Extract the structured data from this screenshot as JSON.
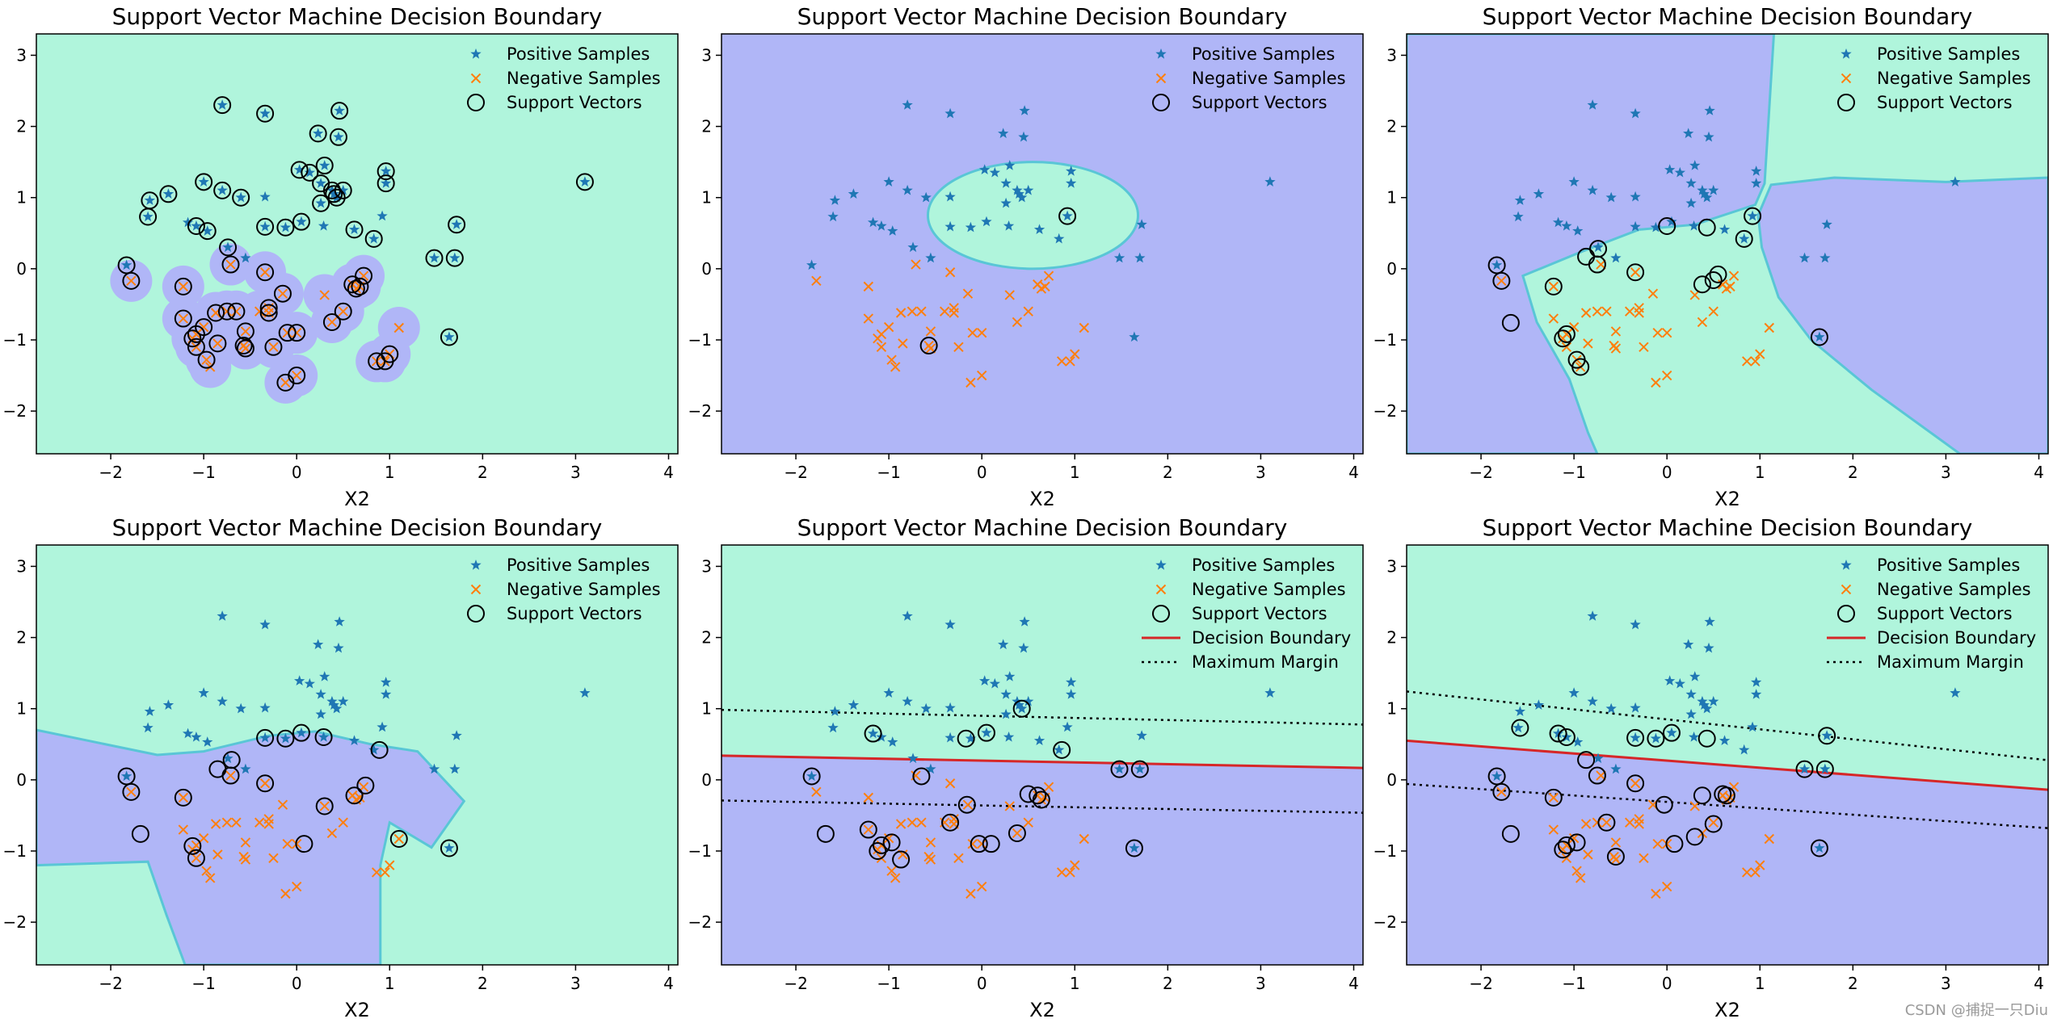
{
  "watermark": "CSDN @捕捉一只Diu",
  "colors": {
    "pos_region": "#b0f5dc",
    "neg_region": "#b0b6f7",
    "region_edge": "#59c6d6",
    "positive": "#1f77b4",
    "negative": "#ff7f0e",
    "boundary": "#d62728",
    "margin": "#000000"
  },
  "chart_data": [
    {
      "type": "scatter",
      "panel": 1,
      "title": "Support Vector Machine Decision Boundary",
      "xlabel": "X2",
      "xlim": [
        -2.8,
        4.1
      ],
      "ylim": [
        -2.6,
        3.3
      ],
      "xticks": [
        -2,
        -1,
        0,
        1,
        2,
        3,
        4
      ],
      "yticks": [
        -2,
        -1,
        0,
        1,
        2,
        3
      ],
      "legend": [
        "Positive Samples",
        "Negative Samples",
        "Support Vectors"
      ],
      "legend_position": "top-right",
      "kernel_region": "rbf-narrow",
      "boundary": null,
      "support_vectors": "nearly all samples"
    },
    {
      "type": "scatter",
      "panel": 2,
      "title": "Support Vector Machine Decision Boundary",
      "xlabel": "X2",
      "xlim": [
        -2.8,
        4.1
      ],
      "ylim": [
        -2.6,
        3.3
      ],
      "xticks": [
        -2,
        -1,
        0,
        1,
        2,
        3,
        4
      ],
      "yticks": [
        -2,
        -1,
        0,
        1,
        2,
        3
      ],
      "legend": [
        "Positive Samples",
        "Negative Samples",
        "Support Vectors"
      ],
      "legend_position": "top-right",
      "kernel_region": "ellipse",
      "boundary": null,
      "support_vectors": [
        [
          -0.57,
          -1.08
        ],
        [
          0.92,
          0.74
        ]
      ]
    },
    {
      "type": "scatter",
      "panel": 3,
      "title": "Support Vector Machine Decision Boundary",
      "xlabel": "X2",
      "xlim": [
        -2.8,
        4.1
      ],
      "ylim": [
        -2.6,
        3.3
      ],
      "xticks": [
        -2,
        -1,
        0,
        1,
        2,
        3,
        4
      ],
      "yticks": [
        -2,
        -1,
        0,
        1,
        2,
        3
      ],
      "legend": [
        "Positive Samples",
        "Negative Samples",
        "Support Vectors"
      ],
      "legend_position": "top-right",
      "kernel_region": "polygon-wedge",
      "boundary": null,
      "support_vectors": [
        [
          -1.83,
          0.05
        ],
        [
          -1.78,
          -0.17
        ],
        [
          -1.68,
          -0.76
        ],
        [
          -1.22,
          -0.25
        ],
        [
          -1.12,
          -0.98
        ],
        [
          -1.08,
          -0.92
        ],
        [
          -0.97,
          -1.28
        ],
        [
          -0.93,
          -1.38
        ],
        [
          -0.87,
          0.17
        ],
        [
          -0.74,
          0.28
        ],
        [
          -0.75,
          0.06
        ],
        [
          -0.34,
          -0.05
        ],
        [
          0.0,
          0.6
        ],
        [
          0.38,
          -0.22
        ],
        [
          0.43,
          0.58
        ],
        [
          0.5,
          -0.16
        ],
        [
          0.55,
          -0.08
        ],
        [
          0.83,
          0.42
        ],
        [
          0.92,
          0.74
        ],
        [
          1.64,
          -0.96
        ]
      ]
    },
    {
      "type": "scatter",
      "panel": 4,
      "title": "Support Vector Machine Decision Boundary",
      "xlabel": "X2",
      "xlim": [
        -2.8,
        4.1
      ],
      "ylim": [
        -2.6,
        3.3
      ],
      "xticks": [
        -2,
        -1,
        0,
        1,
        2,
        3,
        4
      ],
      "yticks": [
        -2,
        -1,
        0,
        1,
        2,
        3
      ],
      "legend": [
        "Positive Samples",
        "Negative Samples",
        "Support Vectors"
      ],
      "legend_position": "top-right",
      "kernel_region": "polygon-poly",
      "boundary": null,
      "support_vectors": [
        [
          -1.83,
          0.05
        ],
        [
          -1.78,
          -0.17
        ],
        [
          -1.68,
          -0.76
        ],
        [
          -1.22,
          -0.25
        ],
        [
          -1.12,
          -0.93
        ],
        [
          -1.08,
          -1.1
        ],
        [
          -0.85,
          0.15
        ],
        [
          -0.7,
          0.28
        ],
        [
          -0.71,
          0.06
        ],
        [
          -0.34,
          -0.05
        ],
        [
          -0.34,
          0.59
        ],
        [
          -0.12,
          0.58
        ],
        [
          0.05,
          0.66
        ],
        [
          0.29,
          0.6
        ],
        [
          0.3,
          -0.37
        ],
        [
          0.08,
          -0.9
        ],
        [
          0.62,
          -0.22
        ],
        [
          0.74,
          -0.08
        ],
        [
          0.89,
          0.42
        ],
        [
          1.64,
          -0.96
        ],
        [
          1.1,
          -0.83
        ]
      ]
    },
    {
      "type": "scatter",
      "panel": 5,
      "title": "Support Vector Machine Decision Boundary",
      "xlabel": "X2",
      "xlim": [
        -2.8,
        4.1
      ],
      "ylim": [
        -2.6,
        3.3
      ],
      "xticks": [
        -2,
        -1,
        0,
        1,
        2,
        3,
        4
      ],
      "yticks": [
        -2,
        -1,
        0,
        1,
        2,
        3
      ],
      "legend": [
        "Positive Samples",
        "Negative Samples",
        "Support Vectors",
        "Decision Boundary",
        "Maximum Margin"
      ],
      "legend_position": "top-right",
      "kernel_region": "linear",
      "boundary": {
        "slope": -0.025,
        "intercept": 0.27
      },
      "margin_upper": {
        "slope": -0.03,
        "intercept": 0.9
      },
      "margin_lower": {
        "slope": -0.025,
        "intercept": -0.36
      },
      "support_vectors": [
        [
          -1.83,
          0.05
        ],
        [
          -1.68,
          -0.76
        ],
        [
          -1.22,
          -0.7
        ],
        [
          -1.17,
          0.65
        ],
        [
          -1.12,
          -1.0
        ],
        [
          -1.08,
          -0.92
        ],
        [
          -0.97,
          -0.88
        ],
        [
          -0.87,
          -1.12
        ],
        [
          -0.65,
          0.05
        ],
        [
          -0.34,
          -0.6
        ],
        [
          -0.17,
          0.58
        ],
        [
          -0.16,
          -0.35
        ],
        [
          0.05,
          0.66
        ],
        [
          -0.03,
          -0.9
        ],
        [
          0.1,
          -0.9
        ],
        [
          0.38,
          -0.75
        ],
        [
          0.43,
          1.0
        ],
        [
          0.5,
          -0.2
        ],
        [
          0.6,
          -0.22
        ],
        [
          0.64,
          -0.28
        ],
        [
          0.86,
          0.42
        ],
        [
          1.48,
          0.15
        ],
        [
          1.7,
          0.15
        ],
        [
          1.64,
          -0.96
        ]
      ]
    },
    {
      "type": "scatter",
      "panel": 6,
      "title": "Support Vector Machine Decision Boundary",
      "xlabel": "X2",
      "xlim": [
        -2.8,
        4.1
      ],
      "ylim": [
        -2.6,
        3.3
      ],
      "xticks": [
        -2,
        -1,
        0,
        1,
        2,
        3,
        4
      ],
      "yticks": [
        -2,
        -1,
        0,
        1,
        2,
        3
      ],
      "legend": [
        "Positive Samples",
        "Negative Samples",
        "Support Vectors",
        "Decision Boundary",
        "Maximum Margin"
      ],
      "legend_position": "top-right",
      "kernel_region": "linear",
      "boundary": {
        "slope": -0.1,
        "intercept": 0.27
      },
      "margin_upper": {
        "slope": -0.14,
        "intercept": 0.85
      },
      "margin_lower": {
        "slope": -0.09,
        "intercept": -0.31
      },
      "support_vectors": [
        [
          -1.83,
          0.05
        ],
        [
          -1.78,
          -0.17
        ],
        [
          -1.68,
          -0.76
        ],
        [
          -1.58,
          0.73
        ],
        [
          -1.22,
          -0.25
        ],
        [
          -1.17,
          0.65
        ],
        [
          -1.12,
          -0.98
        ],
        [
          -1.08,
          0.6
        ],
        [
          -1.08,
          -0.92
        ],
        [
          -0.97,
          -0.88
        ],
        [
          -0.87,
          0.28
        ],
        [
          -0.75,
          0.06
        ],
        [
          -0.65,
          -0.6
        ],
        [
          -0.55,
          -1.08
        ],
        [
          -0.34,
          -0.05
        ],
        [
          -0.34,
          0.59
        ],
        [
          -0.12,
          0.58
        ],
        [
          0.05,
          0.66
        ],
        [
          0.08,
          -0.9
        ],
        [
          -0.03,
          -0.35
        ],
        [
          0.3,
          -0.8
        ],
        [
          0.38,
          -0.22
        ],
        [
          0.43,
          0.58
        ],
        [
          0.5,
          -0.62
        ],
        [
          0.6,
          -0.2
        ],
        [
          0.64,
          -0.22
        ],
        [
          1.48,
          0.15
        ],
        [
          1.7,
          0.15
        ],
        [
          1.72,
          0.62
        ],
        [
          1.64,
          -0.96
        ]
      ]
    }
  ],
  "samples": {
    "positive": [
      [
        -1.83,
        0.05
      ],
      [
        -1.58,
        0.96
      ],
      [
        -1.6,
        0.73
      ],
      [
        -1.38,
        1.05
      ],
      [
        -1.17,
        0.65
      ],
      [
        -1.08,
        0.6
      ],
      [
        -1.0,
        1.22
      ],
      [
        -0.8,
        1.1
      ],
      [
        -0.96,
        0.53
      ],
      [
        -0.8,
        2.3
      ],
      [
        -0.74,
        0.3
      ],
      [
        -0.6,
        1.0
      ],
      [
        -0.34,
        2.18
      ],
      [
        -0.34,
        1.01
      ],
      [
        -0.34,
        0.59
      ],
      [
        -0.12,
        0.58
      ],
      [
        0.03,
        1.39
      ],
      [
        0.05,
        0.66
      ],
      [
        0.14,
        1.35
      ],
      [
        0.23,
        1.9
      ],
      [
        0.26,
        1.2
      ],
      [
        0.3,
        1.45
      ],
      [
        0.29,
        0.6
      ],
      [
        0.26,
        0.92
      ],
      [
        0.4,
        1.05
      ],
      [
        0.43,
        1.0
      ],
      [
        0.45,
        1.85
      ],
      [
        0.46,
        2.22
      ],
      [
        0.5,
        1.1
      ],
      [
        0.62,
        0.55
      ],
      [
        0.83,
        0.42
      ],
      [
        0.92,
        0.74
      ],
      [
        0.96,
        1.37
      ],
      [
        0.96,
        1.2
      ],
      [
        1.48,
        0.15
      ],
      [
        1.72,
        0.62
      ],
      [
        1.7,
        0.15
      ],
      [
        1.64,
        -0.96
      ],
      [
        3.1,
        1.22
      ],
      [
        0.38,
        1.1
      ],
      [
        -0.55,
        0.15
      ]
    ],
    "negative": [
      [
        -1.78,
        -0.17
      ],
      [
        -1.22,
        -0.25
      ],
      [
        -1.22,
        -0.7
      ],
      [
        -1.12,
        -0.98
      ],
      [
        -1.08,
        -0.92
      ],
      [
        -1.08,
        -1.1
      ],
      [
        -1.0,
        -0.82
      ],
      [
        -0.97,
        -1.28
      ],
      [
        -0.93,
        -1.38
      ],
      [
        -0.87,
        -0.62
      ],
      [
        -0.85,
        -1.05
      ],
      [
        -0.75,
        -0.6
      ],
      [
        -0.71,
        0.06
      ],
      [
        -0.65,
        -0.6
      ],
      [
        -0.57,
        -1.08
      ],
      [
        -0.55,
        -0.88
      ],
      [
        -0.55,
        -1.12
      ],
      [
        -0.4,
        -0.6
      ],
      [
        -0.34,
        -0.05
      ],
      [
        -0.3,
        -0.55
      ],
      [
        -0.3,
        -0.62
      ],
      [
        -0.15,
        -0.35
      ],
      [
        -0.1,
        -0.9
      ],
      [
        0.0,
        -0.9
      ],
      [
        -0.12,
        -1.6
      ],
      [
        0.0,
        -1.5
      ],
      [
        0.3,
        -0.37
      ],
      [
        0.38,
        -0.75
      ],
      [
        0.5,
        -0.6
      ],
      [
        0.6,
        -0.22
      ],
      [
        0.64,
        -0.28
      ],
      [
        0.68,
        -0.25
      ],
      [
        0.72,
        -0.1
      ],
      [
        0.86,
        -1.3
      ],
      [
        1.0,
        -1.2
      ],
      [
        1.1,
        -0.83
      ],
      [
        0.95,
        -1.3
      ],
      [
        -0.25,
        -1.1
      ]
    ]
  }
}
